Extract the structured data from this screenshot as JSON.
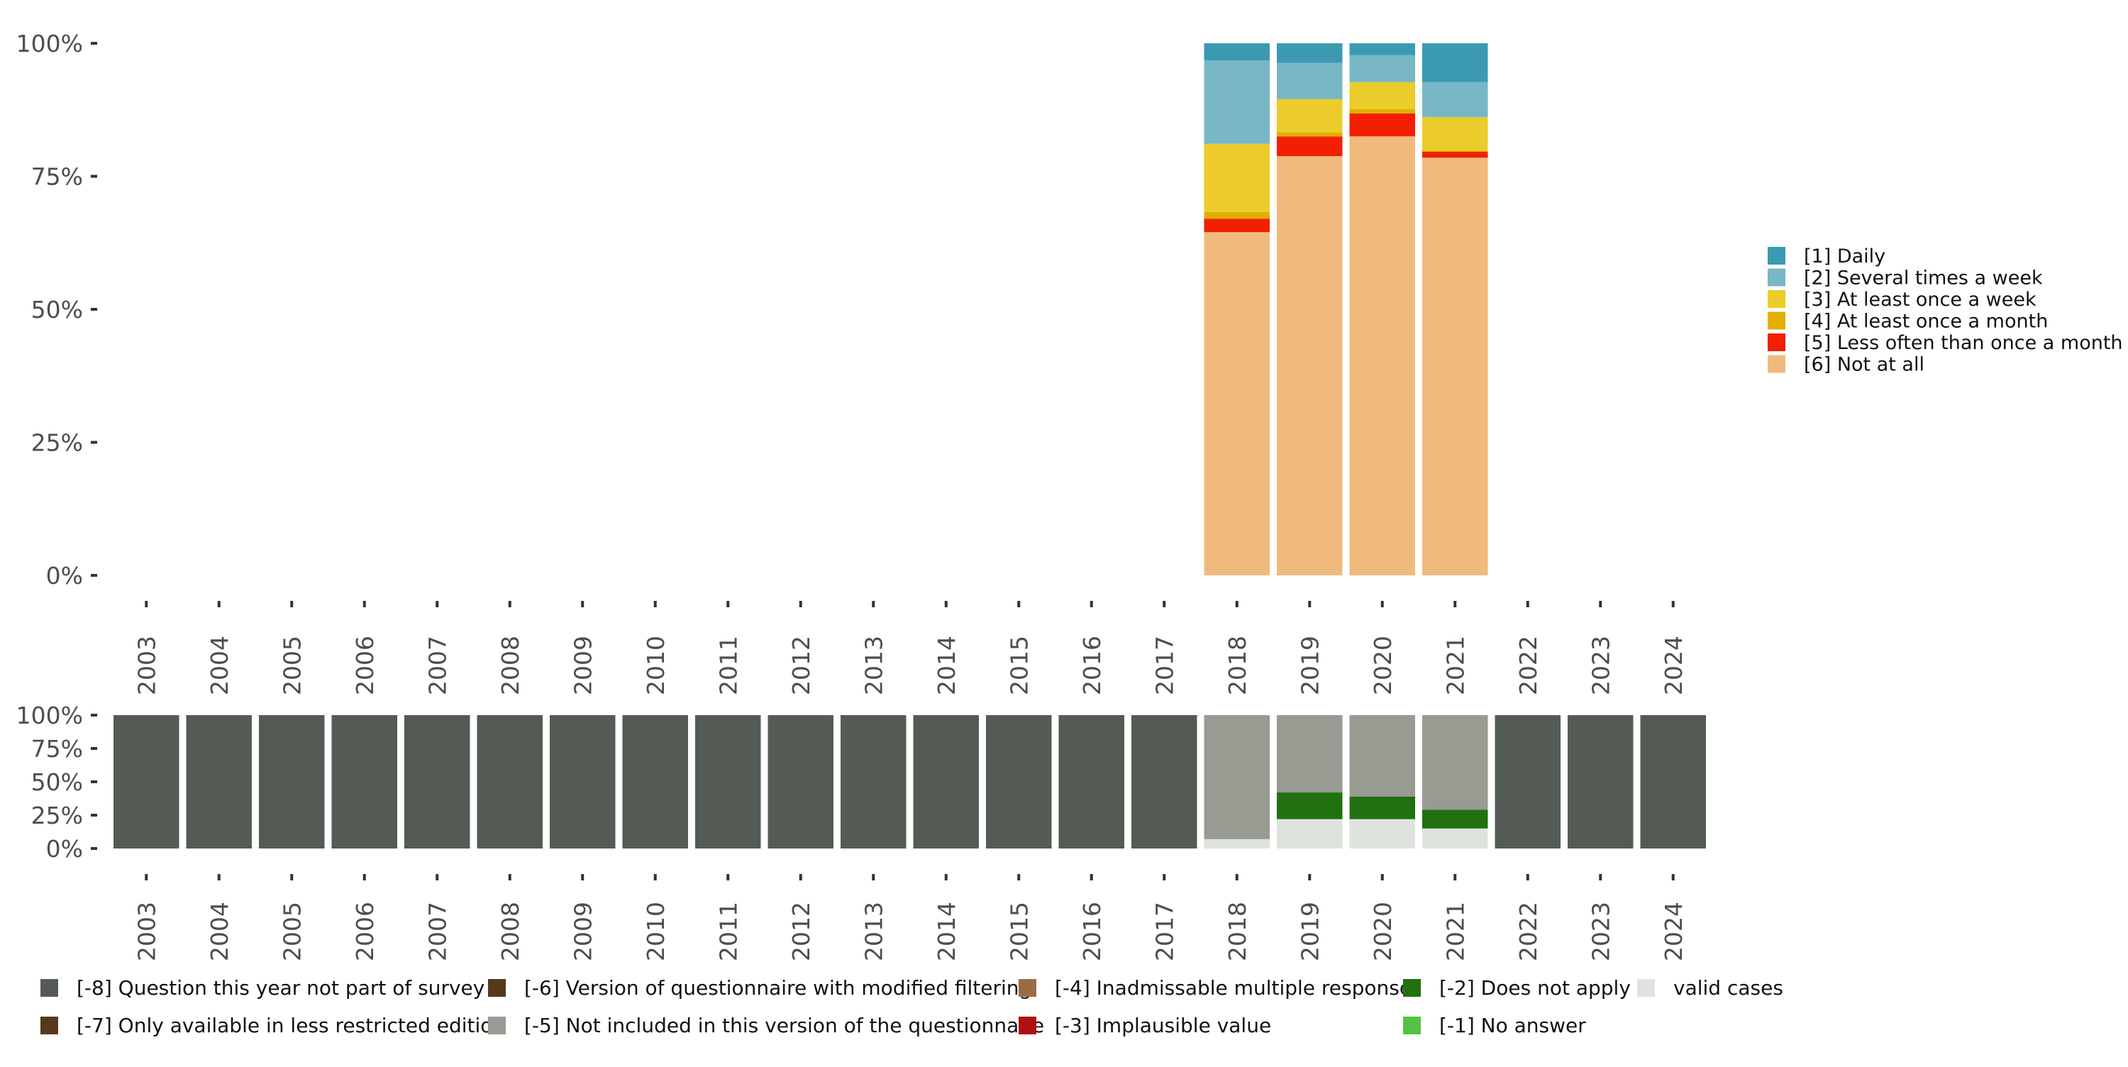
{
  "chart_data": [
    {
      "type": "bar",
      "stacked": true,
      "title": "",
      "xlabel": "",
      "ylabel": "",
      "ylim": [
        0,
        100
      ],
      "y_ticks": [
        0,
        25,
        50,
        75,
        100
      ],
      "y_tick_labels": [
        "0%",
        "25%",
        "50%",
        "75%",
        "100%"
      ],
      "categories": [
        "2003",
        "2004",
        "2005",
        "2006",
        "2007",
        "2008",
        "2009",
        "2010",
        "2011",
        "2012",
        "2013",
        "2014",
        "2015",
        "2016",
        "2017",
        "2018",
        "2019",
        "2020",
        "2021",
        "2022",
        "2023",
        "2024"
      ],
      "legend_position": "right",
      "series": [
        {
          "name": "[6] Not at all",
          "color": "#F0BA7D",
          "values": [
            null,
            null,
            null,
            null,
            null,
            null,
            null,
            null,
            null,
            null,
            null,
            null,
            null,
            null,
            null,
            64.5,
            78.8,
            82.5,
            78.5,
            null,
            null,
            null
          ]
        },
        {
          "name": "[5] Less often than once a month",
          "color": "#F21F00",
          "values": [
            null,
            null,
            null,
            null,
            null,
            null,
            null,
            null,
            null,
            null,
            null,
            null,
            null,
            null,
            null,
            2.5,
            3.7,
            4.3,
            1.1,
            null,
            null,
            null
          ]
        },
        {
          "name": "[4] At least once a month",
          "color": "#E1AF00",
          "values": [
            null,
            null,
            null,
            null,
            null,
            null,
            null,
            null,
            null,
            null,
            null,
            null,
            null,
            null,
            null,
            1.3,
            0.8,
            0.8,
            0.2,
            null,
            null,
            null
          ]
        },
        {
          "name": "[3] At least once a week",
          "color": "#EBCC2A",
          "values": [
            null,
            null,
            null,
            null,
            null,
            null,
            null,
            null,
            null,
            null,
            null,
            null,
            null,
            null,
            null,
            12.8,
            6.2,
            5.1,
            6.3,
            null,
            null,
            null
          ]
        },
        {
          "name": "[2] Several times a week",
          "color": "#78B7C5",
          "values": [
            null,
            null,
            null,
            null,
            null,
            null,
            null,
            null,
            null,
            null,
            null,
            null,
            null,
            null,
            null,
            15.7,
            6.8,
            5.1,
            6.6,
            null,
            null,
            null
          ]
        },
        {
          "name": "[1] Daily",
          "color": "#3B9AB2",
          "values": [
            null,
            null,
            null,
            null,
            null,
            null,
            null,
            null,
            null,
            null,
            null,
            null,
            null,
            null,
            null,
            3.2,
            3.7,
            2.2,
            7.3,
            null,
            null,
            null
          ]
        }
      ],
      "legend": [
        {
          "label": "[1] Daily",
          "color": "#3B9AB2"
        },
        {
          "label": "[2] Several times a week",
          "color": "#78B7C5"
        },
        {
          "label": "[3] At least once a week",
          "color": "#EBCC2A"
        },
        {
          "label": "[4] At least once a month",
          "color": "#E1AF00"
        },
        {
          "label": "[5] Less often than once a month",
          "color": "#F21F00"
        },
        {
          "label": "[6] Not at all",
          "color": "#F0BA7D"
        }
      ]
    },
    {
      "type": "bar",
      "stacked": true,
      "title": "",
      "xlabel": "",
      "ylabel": "",
      "ylim": [
        0,
        100
      ],
      "y_ticks": [
        0,
        25,
        50,
        75,
        100
      ],
      "y_tick_labels": [
        "0%",
        "25%",
        "50%",
        "75%",
        "100%"
      ],
      "categories": [
        "2003",
        "2004",
        "2005",
        "2006",
        "2007",
        "2008",
        "2009",
        "2010",
        "2011",
        "2012",
        "2013",
        "2014",
        "2015",
        "2016",
        "2017",
        "2018",
        "2019",
        "2020",
        "2021",
        "2022",
        "2023",
        "2024"
      ],
      "legend_position": "bottom",
      "series": [
        {
          "name": "valid cases",
          "color": "#DFE3DE",
          "values": [
            0,
            0,
            0,
            0,
            0,
            0,
            0,
            0,
            0,
            0,
            0,
            0,
            0,
            0,
            0,
            7,
            22,
            22,
            15,
            0,
            0,
            0
          ]
        },
        {
          "name": "[-2] Does not apply",
          "color": "#217111",
          "values": [
            0,
            0,
            0,
            0,
            0,
            0,
            0,
            0,
            0,
            0,
            0,
            0,
            0,
            0,
            0,
            0,
            20,
            17,
            14,
            0,
            0,
            0
          ]
        },
        {
          "name": "[-5] Not included in this version of the questionnaire",
          "color": "#979B92",
          "values": [
            0,
            0,
            0,
            0,
            0,
            0,
            0,
            0,
            0,
            0,
            0,
            0,
            0,
            0,
            0,
            93,
            58,
            61,
            71,
            0,
            0,
            0
          ]
        },
        {
          "name": "[-8] Question this year not part of survey",
          "color": "#545B54",
          "values": [
            100,
            100,
            100,
            100,
            100,
            100,
            100,
            100,
            100,
            100,
            100,
            100,
            100,
            100,
            100,
            0,
            0,
            0,
            0,
            100,
            100,
            100
          ]
        }
      ],
      "legend": [
        {
          "label": "[-8] Question this year not part of survey",
          "color": "#545B54"
        },
        {
          "label": "[-7] Only available in less restricted edition",
          "color": "#55391A"
        },
        {
          "label": "[-6] Version of questionnaire with modified filtering",
          "color": "#55391A"
        },
        {
          "label": "[-5] Not included in this version of the questionnaire",
          "color": "#979B92"
        },
        {
          "label": "[-4] Inadmissable multiple response",
          "color": "#9B6B44"
        },
        {
          "label": "[-3] Implausible value",
          "color": "#AF1010"
        },
        {
          "label": "[-2] Does not apply",
          "color": "#217111"
        },
        {
          "label": "[-1] No answer",
          "color": "#55C144"
        },
        {
          "label": "valid cases",
          "color": "#DFE3DE"
        }
      ]
    }
  ]
}
